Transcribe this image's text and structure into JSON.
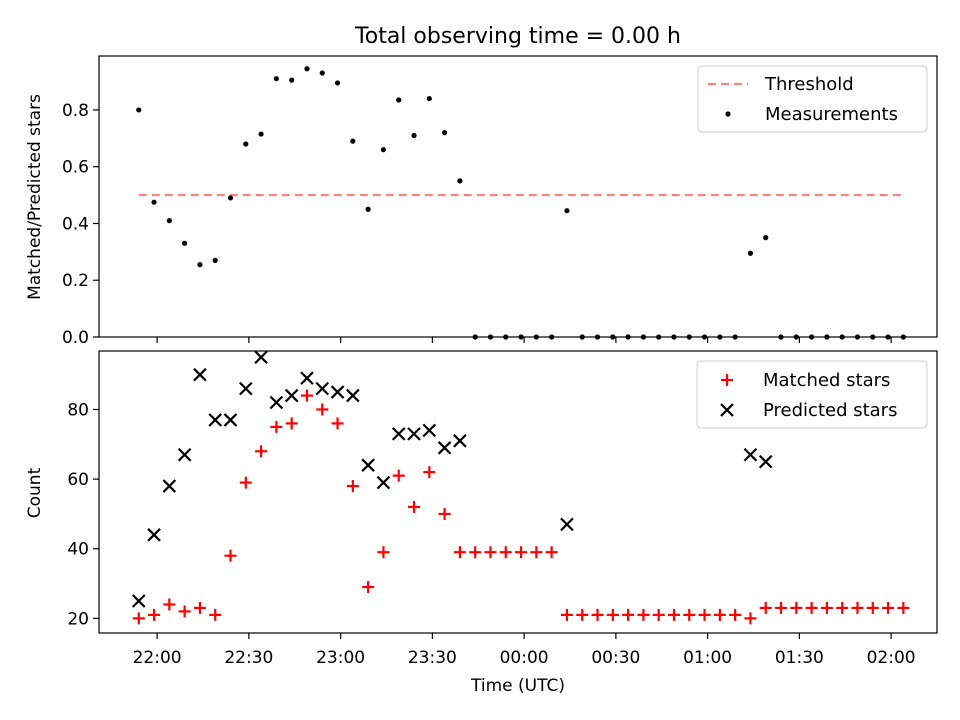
{
  "chart_data": [
    {
      "type": "line+scatter",
      "title": "Total observing time = 0.00 h",
      "ylabel": "Matched/Predicted stars",
      "ylim": [
        0,
        0.99
      ],
      "yticks": [
        0.0,
        0.2,
        0.4,
        0.6,
        0.8
      ],
      "ytick_labels": [
        "0.0",
        "0.2",
        "0.4",
        "0.6",
        "0.8"
      ],
      "x_axis_time": true,
      "legend_position": "top-right",
      "threshold": {
        "name": "Threshold",
        "value": 0.5,
        "x_start": "21:54",
        "x_end": "02:04",
        "color": "#ff8080"
      },
      "series": [
        {
          "name": "Measurements",
          "kind": "scatter",
          "color": "#000000",
          "x": [
            "21:54",
            "21:59",
            "22:04",
            "22:09",
            "22:14",
            "22:19",
            "22:24",
            "22:29",
            "22:34",
            "22:39",
            "22:44",
            "22:49",
            "22:54",
            "22:59",
            "23:04",
            "23:09",
            "23:14",
            "23:19",
            "23:24",
            "23:29",
            "23:34",
            "23:39",
            "23:44",
            "23:49",
            "23:54",
            "23:59",
            "00:04",
            "00:09",
            "00:14",
            "00:19",
            "00:24",
            "00:29",
            "00:34",
            "00:39",
            "00:44",
            "00:49",
            "00:54",
            "00:59",
            "01:04",
            "01:09",
            "01:14",
            "01:19",
            "01:24",
            "01:29",
            "01:34",
            "01:39",
            "01:44",
            "01:49",
            "01:54",
            "01:59",
            "02:04"
          ],
          "y": [
            0.8,
            0.475,
            0.41,
            0.33,
            0.255,
            0.27,
            0.49,
            0.68,
            0.715,
            0.91,
            0.905,
            0.945,
            0.93,
            0.895,
            0.69,
            0.45,
            0.66,
            0.835,
            0.71,
            0.84,
            0.72,
            0.55,
            0.0,
            0.0,
            0.0,
            0.0,
            0.0,
            0.0,
            0.445,
            0.0,
            0.0,
            0.0,
            0.0,
            0.0,
            0.0,
            0.0,
            0.0,
            0.0,
            0.0,
            0.0,
            0.295,
            0.35,
            0.0,
            0.0,
            0.0,
            0.0,
            0.0,
            0.0,
            0.0,
            0.0,
            0.0
          ]
        }
      ]
    },
    {
      "type": "scatter",
      "title": "",
      "xlabel": "Time (UTC)",
      "ylabel": "Count",
      "ylim": [
        15.8,
        96.8
      ],
      "yticks": [
        20,
        40,
        60,
        80
      ],
      "ytick_labels": [
        "20",
        "40",
        "60",
        "80"
      ],
      "xlim": [
        "21:41",
        "02:15"
      ],
      "xticks": [
        "22:00",
        "22:30",
        "23:00",
        "23:30",
        "00:00",
        "00:30",
        "01:00",
        "01:30",
        "02:00"
      ],
      "legend_position": "top-right",
      "series": [
        {
          "name": "Matched stars",
          "marker": "plus",
          "color": "#ff0000",
          "x": [
            "21:54",
            "21:59",
            "22:04",
            "22:09",
            "22:14",
            "22:19",
            "22:24",
            "22:29",
            "22:34",
            "22:39",
            "22:44",
            "22:49",
            "22:54",
            "22:59",
            "23:04",
            "23:09",
            "23:14",
            "23:19",
            "23:24",
            "23:29",
            "23:34",
            "23:39",
            "23:44",
            "23:49",
            "23:54",
            "23:59",
            "00:04",
            "00:09",
            "00:14",
            "00:19",
            "00:24",
            "00:29",
            "00:34",
            "00:39",
            "00:44",
            "00:49",
            "00:54",
            "00:59",
            "01:04",
            "01:09",
            "01:14",
            "01:19",
            "01:24",
            "01:29",
            "01:34",
            "01:39",
            "01:44",
            "01:49",
            "01:54",
            "01:59",
            "02:04"
          ],
          "y": [
            20,
            21,
            24,
            22,
            23,
            21,
            38,
            59,
            68,
            75,
            76,
            84,
            80,
            76,
            58,
            29,
            39,
            61,
            52,
            62,
            50,
            39,
            39,
            39,
            39,
            39,
            39,
            39,
            21,
            21,
            21,
            21,
            21,
            21,
            21,
            21,
            21,
            21,
            21,
            21,
            20,
            23,
            23,
            23,
            23,
            23,
            23,
            23,
            23,
            23,
            23
          ]
        },
        {
          "name": "Predicted stars",
          "marker": "x",
          "color": "#000000",
          "x": [
            "21:54",
            "21:59",
            "22:04",
            "22:09",
            "22:14",
            "22:19",
            "22:24",
            "22:29",
            "22:34",
            "22:39",
            "22:44",
            "22:49",
            "22:54",
            "22:59",
            "23:04",
            "23:09",
            "23:14",
            "23:19",
            "23:24",
            "23:29",
            "23:34",
            "23:39",
            "00:14",
            "01:14",
            "01:19"
          ],
          "y": [
            25,
            44,
            58,
            67,
            90,
            77,
            77,
            86,
            95,
            82,
            84,
            89,
            86,
            85,
            84,
            64,
            59,
            73,
            73,
            74,
            69,
            71,
            47,
            67,
            65
          ]
        }
      ]
    }
  ]
}
